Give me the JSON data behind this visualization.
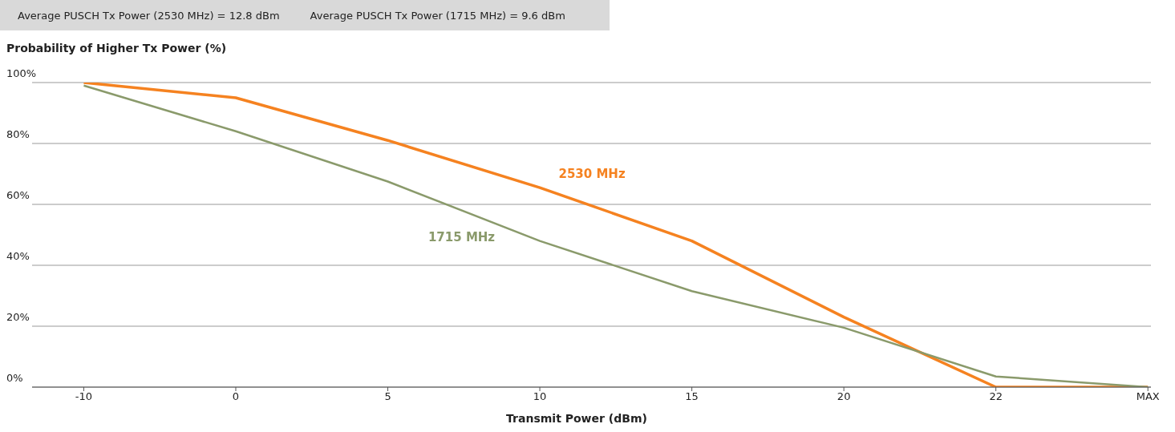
{
  "chart_data": {
    "type": "line",
    "ylabel": "Probability of Higher Tx Power (%)",
    "xlabel": "Transmit Power (dBm)",
    "annotations": [
      "Average PUSCH Tx Power (2530 MHz) = 12.8 dBm",
      "Average PUSCH Tx Power (1715 MHz) = 9.6 dBm"
    ],
    "categories": [
      "-10",
      "0",
      "5",
      "10",
      "15",
      "20",
      "22",
      "MAX"
    ],
    "series": [
      {
        "name": "2530 MHz",
        "color": "#f58220",
        "values": [
          100,
          95,
          81,
          65.5,
          48,
          23,
          0,
          0
        ]
      },
      {
        "name": "1715 MHz",
        "color": "#8a9a6b",
        "values": [
          99,
          84,
          67.5,
          48,
          31.5,
          19.5,
          3.5,
          0
        ]
      }
    ],
    "ylim": [
      0,
      100
    ],
    "yticks": [
      {
        "value": 0,
        "label": "0%"
      },
      {
        "value": 20,
        "label": "20%"
      },
      {
        "value": 40,
        "label": "40%"
      },
      {
        "value": 60,
        "label": "60%"
      },
      {
        "value": 80,
        "label": "80%"
      },
      {
        "value": 100,
        "label": "100%"
      }
    ],
    "grid": "y",
    "legend": false,
    "marker": "none",
    "line_style": "solid"
  }
}
